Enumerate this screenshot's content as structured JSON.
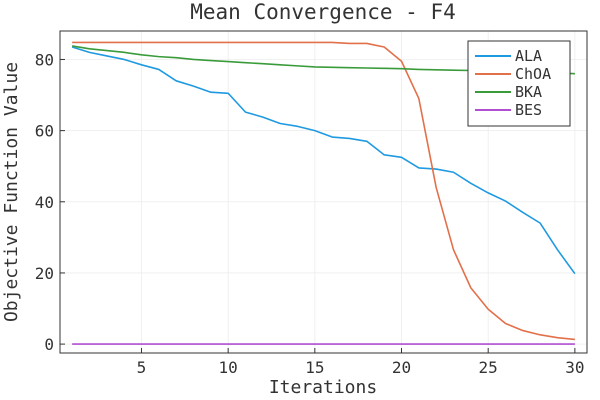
{
  "chart_data": {
    "type": "line",
    "title": "Mean Convergence - F4",
    "xlabel": "Iterations",
    "ylabel": "Objective Function Value",
    "xlim": [
      0.3,
      30.7
    ],
    "ylim": [
      -2.5,
      88
    ],
    "xticks": [
      5,
      10,
      15,
      20,
      25,
      30
    ],
    "yticks": [
      0,
      20,
      40,
      60,
      80
    ],
    "grid": true,
    "legend": "top-right",
    "x": [
      1,
      2,
      3,
      4,
      5,
      6,
      7,
      8,
      9,
      10,
      11,
      12,
      13,
      14,
      15,
      16,
      17,
      18,
      19,
      20,
      21,
      22,
      23,
      24,
      25,
      26,
      27,
      28,
      29,
      30
    ],
    "series": [
      {
        "name": "ALA",
        "color": "#1f9ae0",
        "values": [
          83.5,
          82.0,
          81.0,
          80.0,
          78.5,
          77.2,
          74.0,
          72.5,
          70.8,
          70.5,
          65.2,
          63.8,
          62.0,
          61.2,
          60.0,
          58.2,
          57.8,
          57.0,
          53.2,
          52.5,
          49.5,
          49.2,
          48.3,
          45.2,
          42.5,
          40.2,
          37.0,
          34.0,
          26.5,
          19.8
        ]
      },
      {
        "name": "ChOA",
        "color": "#e2704a",
        "values": [
          84.8,
          84.8,
          84.8,
          84.8,
          84.8,
          84.8,
          84.8,
          84.8,
          84.8,
          84.8,
          84.8,
          84.8,
          84.8,
          84.8,
          84.8,
          84.8,
          84.5,
          84.5,
          83.5,
          79.5,
          69.0,
          44.0,
          26.5,
          15.8,
          9.8,
          5.8,
          3.8,
          2.6,
          1.8,
          1.3
        ]
      },
      {
        "name": "BKA",
        "color": "#3a9b3a",
        "values": [
          83.8,
          83.0,
          82.5,
          82.0,
          81.3,
          80.8,
          80.5,
          80.0,
          79.7,
          79.4,
          79.1,
          78.8,
          78.5,
          78.2,
          77.9,
          77.8,
          77.7,
          77.6,
          77.5,
          77.4,
          77.2,
          77.1,
          77.0,
          76.9,
          76.8,
          76.7,
          76.5,
          76.3,
          76.2,
          76.0
        ]
      },
      {
        "name": "BES",
        "color": "#b04fd0",
        "values": [
          0,
          0,
          0,
          0,
          0,
          0,
          0,
          0,
          0,
          0,
          0,
          0,
          0,
          0,
          0,
          0,
          0,
          0,
          0,
          0,
          0,
          0,
          0,
          0,
          0,
          0,
          0,
          0,
          0,
          0
        ]
      }
    ]
  }
}
